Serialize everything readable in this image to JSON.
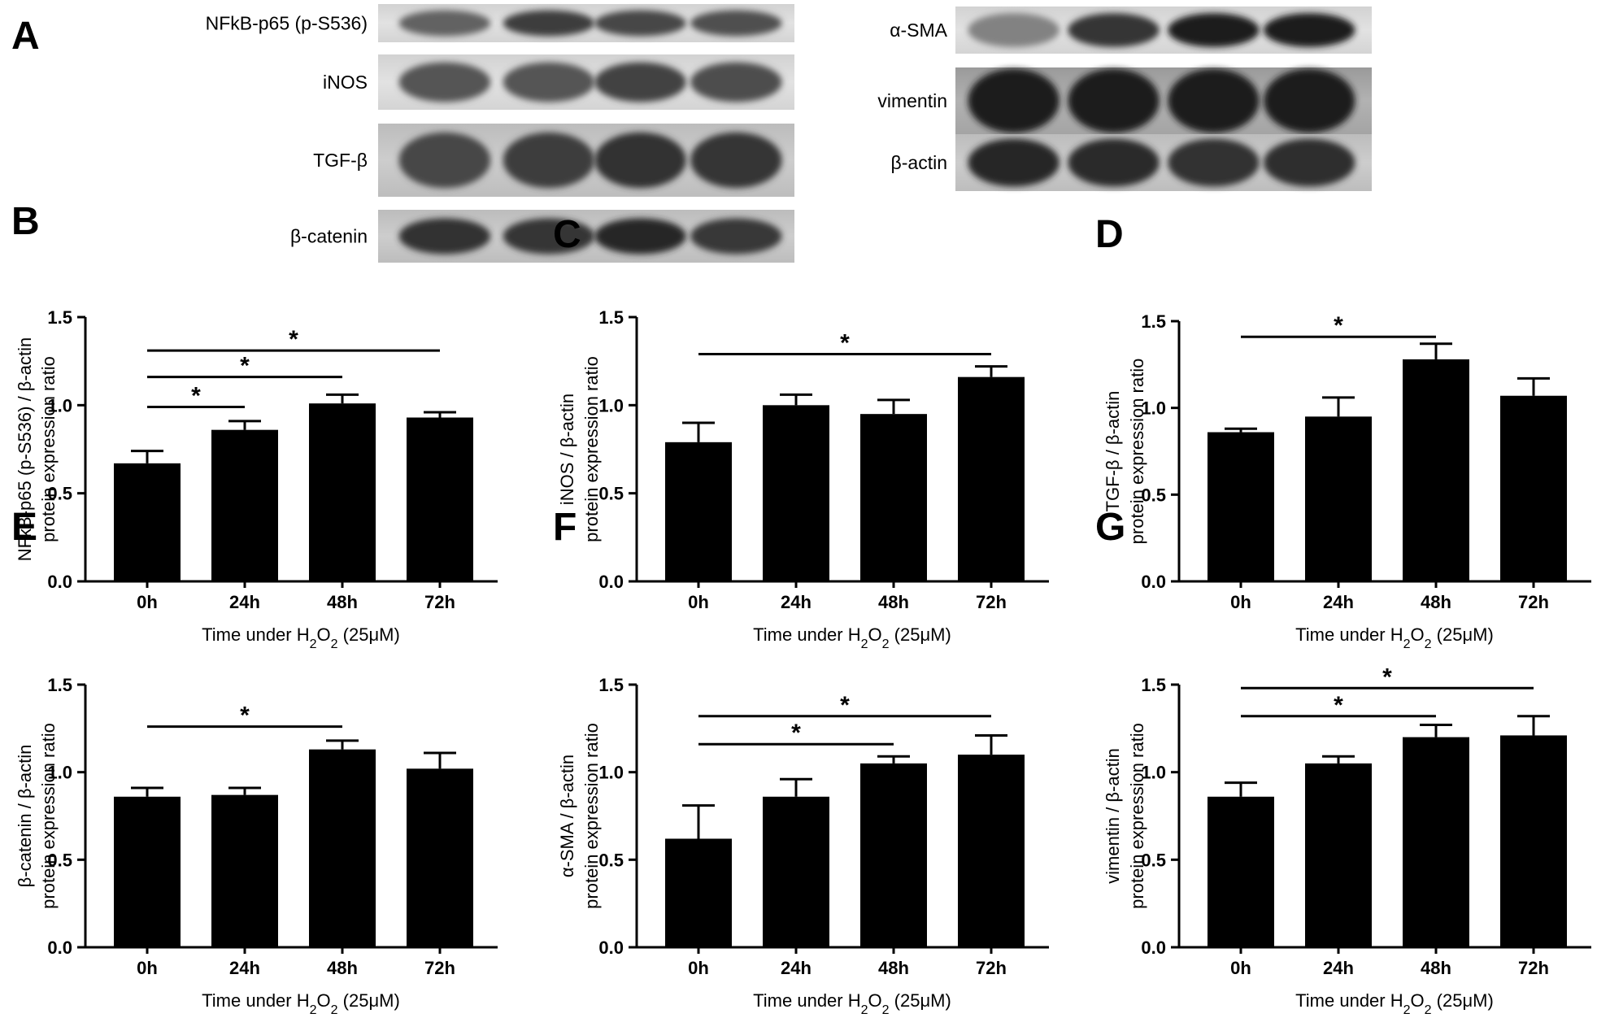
{
  "figure": {
    "letters": [
      "A",
      "B",
      "C",
      "D",
      "E",
      "F",
      "G"
    ]
  },
  "blots": {
    "left": {
      "labels": [
        "NFkB-p65 (p-S536)",
        "iNOS",
        "TGF-β",
        "β-catenin"
      ]
    },
    "right": {
      "labels": [
        "α-SMA",
        "vimentin",
        "β-actin"
      ]
    }
  },
  "chart_data": [
    {
      "panel": "B",
      "type": "bar",
      "categories": [
        "0h",
        "24h",
        "48h",
        "72h"
      ],
      "values": [
        0.67,
        0.86,
        1.01,
        0.93
      ],
      "errors": [
        0.07,
        0.05,
        0.05,
        0.03
      ],
      "ylabel": [
        "NFkB-p65 (p-S536) / β-actin",
        "protein expression ratio"
      ],
      "xlabel": {
        "prefix": "Time under H",
        "sub1": "2",
        "mid": "O",
        "sub2": "2",
        "suffix": " (25μM)"
      },
      "ylim": [
        0,
        1.5
      ],
      "yticks": [
        "0.0",
        "0.5",
        "1.0",
        "1.5"
      ],
      "significance": [
        {
          "from": 0,
          "to": 1,
          "y": 0.99,
          "label": "*"
        },
        {
          "from": 0,
          "to": 2,
          "y": 1.16,
          "label": "*"
        },
        {
          "from": 0,
          "to": 3,
          "y": 1.31,
          "label": "*"
        }
      ]
    },
    {
      "panel": "C",
      "type": "bar",
      "categories": [
        "0h",
        "24h",
        "48h",
        "72h"
      ],
      "values": [
        0.79,
        1.0,
        0.95,
        1.16
      ],
      "errors": [
        0.11,
        0.06,
        0.08,
        0.06
      ],
      "ylabel": [
        "iNOS / β-actin",
        "protein expression ratio"
      ],
      "xlabel": {
        "prefix": "Time under H",
        "sub1": "2",
        "mid": "O",
        "sub2": "2",
        "suffix": " (25μM)"
      },
      "ylim": [
        0,
        1.5
      ],
      "yticks": [
        "0.0",
        "0.5",
        "1.0",
        "1.5"
      ],
      "significance": [
        {
          "from": 0,
          "to": 3,
          "y": 1.29,
          "label": "*"
        }
      ]
    },
    {
      "panel": "D",
      "type": "bar",
      "categories": [
        "0h",
        "24h",
        "48h",
        "72h"
      ],
      "values": [
        0.86,
        0.95,
        1.28,
        1.07
      ],
      "errors": [
        0.02,
        0.11,
        0.09,
        0.1
      ],
      "ylabel": [
        "TGF-β / β-actin",
        "protein expression ratio"
      ],
      "xlabel": {
        "prefix": "Time under H",
        "sub1": "2",
        "mid": "O",
        "sub2": "2",
        "suffix": " (25μM)"
      },
      "ylim": [
        0,
        1.5
      ],
      "yticks": [
        "0.0",
        "0.5",
        "1.0",
        "1.5"
      ],
      "significance": [
        {
          "from": 0,
          "to": 2,
          "y": 1.41,
          "label": "*"
        }
      ]
    },
    {
      "panel": "E",
      "type": "bar",
      "categories": [
        "0h",
        "24h",
        "48h",
        "72h"
      ],
      "values": [
        0.86,
        0.87,
        1.13,
        1.02
      ],
      "errors": [
        0.05,
        0.04,
        0.05,
        0.09
      ],
      "ylabel": [
        "β-catenin / β-actin",
        "protein expression ratio"
      ],
      "xlabel": {
        "prefix": "Time under H",
        "sub1": "2",
        "mid": "O",
        "sub2": "2",
        "suffix": " (25μM)"
      },
      "ylim": [
        0,
        1.5
      ],
      "yticks": [
        "0.0",
        "0.5",
        "1.0",
        "1.5"
      ],
      "significance": [
        {
          "from": 0,
          "to": 2,
          "y": 1.26,
          "label": "*"
        }
      ]
    },
    {
      "panel": "F",
      "type": "bar",
      "categories": [
        "0h",
        "24h",
        "48h",
        "72h"
      ],
      "values": [
        0.62,
        0.86,
        1.05,
        1.1
      ],
      "errors": [
        0.19,
        0.1,
        0.04,
        0.11
      ],
      "ylabel": [
        "α-SMA / β-actin",
        "protein expression ratio"
      ],
      "xlabel": {
        "prefix": "Time under H",
        "sub1": "2",
        "mid": "O",
        "sub2": "2",
        "suffix": " (25μM)"
      },
      "ylim": [
        0,
        1.5
      ],
      "yticks": [
        "0.0",
        "0.5",
        "1.0",
        "1.5"
      ],
      "significance": [
        {
          "from": 0,
          "to": 2,
          "y": 1.16,
          "label": "*"
        },
        {
          "from": 0,
          "to": 3,
          "y": 1.32,
          "label": "*"
        }
      ]
    },
    {
      "panel": "G",
      "type": "bar",
      "categories": [
        "0h",
        "24h",
        "48h",
        "72h"
      ],
      "values": [
        0.86,
        1.05,
        1.2,
        1.21
      ],
      "errors": [
        0.08,
        0.04,
        0.07,
        0.11
      ],
      "ylabel": [
        "vimentin / β-actin",
        "protein expression ratio"
      ],
      "xlabel": {
        "prefix": "Time under H",
        "sub1": "2",
        "mid": "O",
        "sub2": "2",
        "suffix": " (25μM)"
      },
      "ylim": [
        0,
        1.5
      ],
      "yticks": [
        "0.0",
        "0.5",
        "1.0",
        "1.5"
      ],
      "significance": [
        {
          "from": 0,
          "to": 2,
          "y": 1.32,
          "label": "*"
        },
        {
          "from": 0,
          "to": 3,
          "y": 1.48,
          "label": "*"
        }
      ]
    }
  ]
}
